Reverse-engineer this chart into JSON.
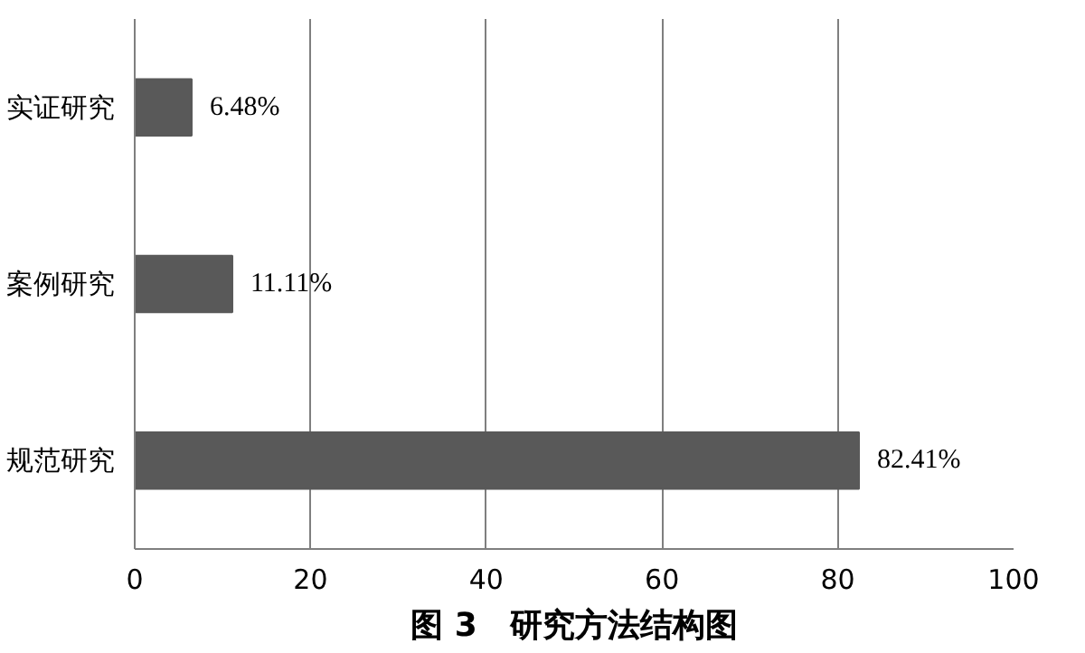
{
  "chart_data": {
    "type": "bar",
    "orientation": "horizontal",
    "title": "图 3　研究方法结构图",
    "categories": [
      "实证研究",
      "案例研究",
      "规范研究"
    ],
    "values": [
      6.48,
      11.11,
      82.41
    ],
    "value_labels": [
      "6.48%",
      "11.11%",
      "82.41%"
    ],
    "color": "#595959",
    "xlim": [
      0,
      100
    ],
    "xticks": [
      0,
      20,
      40,
      60,
      80,
      100
    ],
    "grid": "x"
  }
}
